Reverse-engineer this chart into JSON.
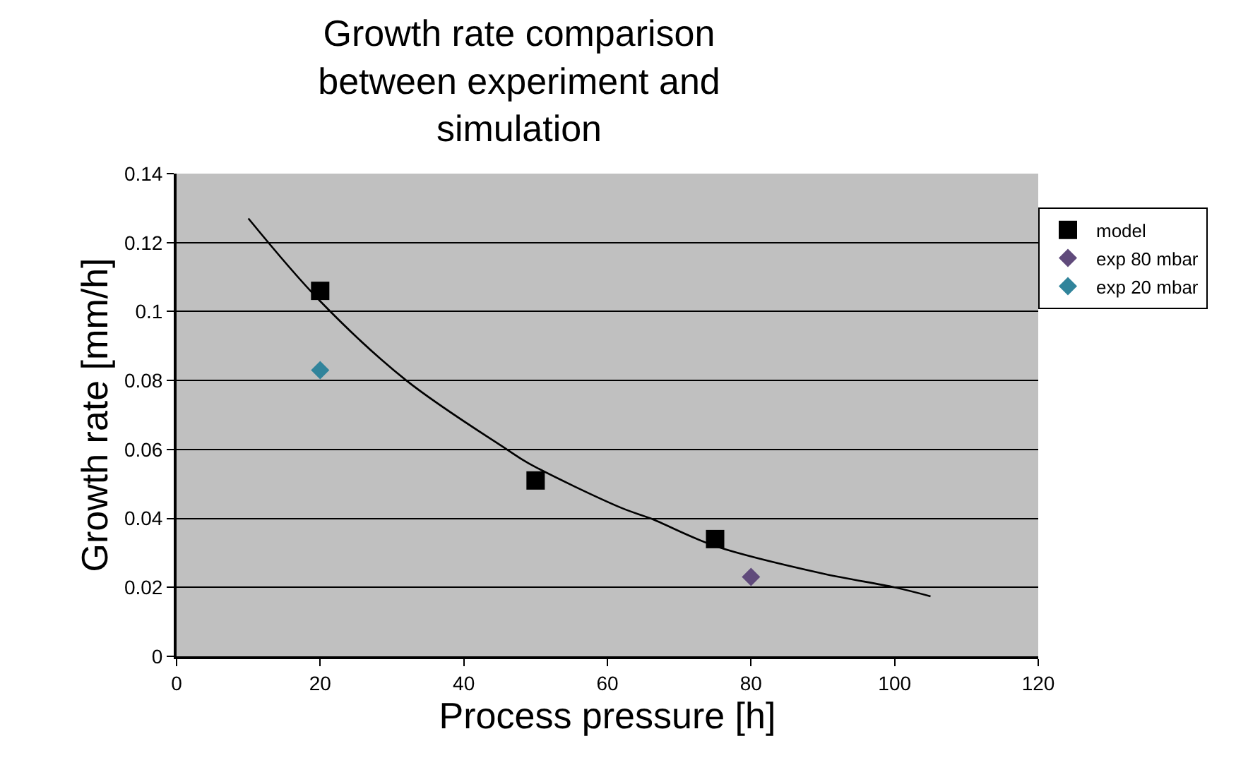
{
  "chart_data": {
    "type": "scatter",
    "title": "Growth rate comparison between experiment and simulation",
    "xlabel": "Process pressure [h]",
    "ylabel": "Growth rate [mm/h]",
    "series": [
      {
        "name": "model",
        "color": "#000000",
        "marker": "square",
        "x": [
          20,
          50,
          75
        ],
        "values": [
          0.106,
          0.051,
          0.034
        ]
      },
      {
        "name": "exp 80 mbar",
        "color": "#604a7b",
        "marker": "diamond",
        "x": [
          80
        ],
        "values": [
          0.023
        ]
      },
      {
        "name": "exp 20 mbar",
        "color": "#31849b",
        "marker": "diamond",
        "x": [
          20
        ],
        "values": [
          0.083
        ]
      },
      {
        "type": "line",
        "color": "#000000",
        "marker": "none",
        "x": [
          10,
          20,
          32,
          46,
          49,
          62,
          66,
          75,
          90,
          100,
          105
        ],
        "values": [
          0.127,
          0.103,
          0.08,
          0.06,
          0.056,
          0.043,
          0.04,
          0.032,
          0.024,
          0.02,
          0.0174
        ]
      }
    ],
    "xlim": [
      0,
      120
    ],
    "xticks": [
      0,
      20,
      40,
      60,
      80,
      100,
      120
    ],
    "ylim": [
      0,
      0.14
    ],
    "yticks": [
      0,
      0.02,
      0.04,
      0.06,
      0.08,
      0.1,
      0.12,
      0.14
    ],
    "grid": "y",
    "legend": "top right"
  }
}
